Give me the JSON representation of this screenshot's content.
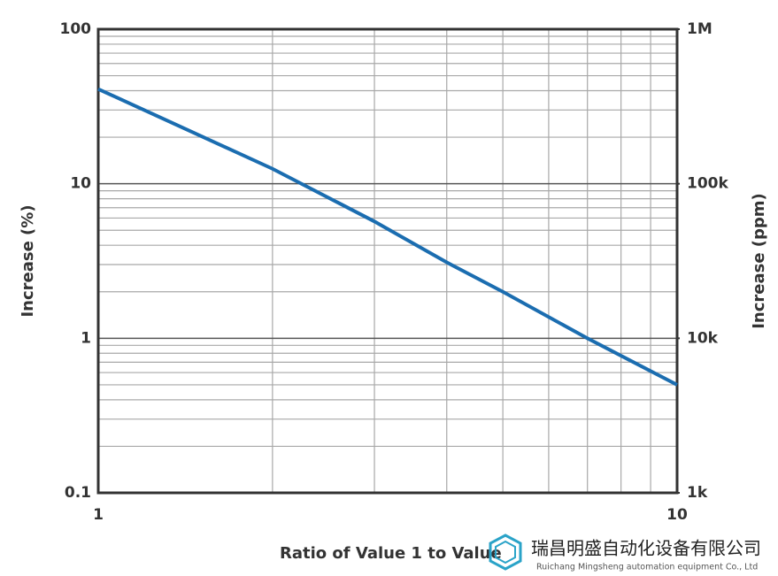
{
  "chart_data": {
    "type": "line",
    "x_label": "Ratio of Value 1 to Value",
    "y_label": "Increase (%)",
    "y2_label": "Increase (ppm)",
    "xscale": "log",
    "yscale": "log",
    "y2scale": "log",
    "xlim": [
      1,
      10
    ],
    "xticks": [
      1,
      10
    ],
    "ylim": [
      0.1,
      100
    ],
    "yticks": [
      0.1,
      1,
      10,
      100
    ],
    "y2lim": [
      1000,
      1000000
    ],
    "y2ticks": [
      {
        "value": 1000,
        "label": "1k"
      },
      {
        "value": 10000,
        "label": "10k"
      },
      {
        "value": 100000,
        "label": "100k"
      },
      {
        "value": 1000000,
        "label": "1M"
      }
    ],
    "grid": true,
    "minor_grid": true,
    "x": [
      1,
      2,
      3,
      4,
      5,
      7,
      10
    ],
    "series": [
      {
        "color": "#1b6db0",
        "values": [
          41,
          12.5,
          5.7,
          3.1,
          2.0,
          1.0,
          0.5
        ]
      }
    ],
    "watermark": {
      "name": "瑞昌明盛自动化设备有限公司",
      "subtitle": "Ruichang Mingsheng automation equipment Co., Ltd"
    }
  }
}
